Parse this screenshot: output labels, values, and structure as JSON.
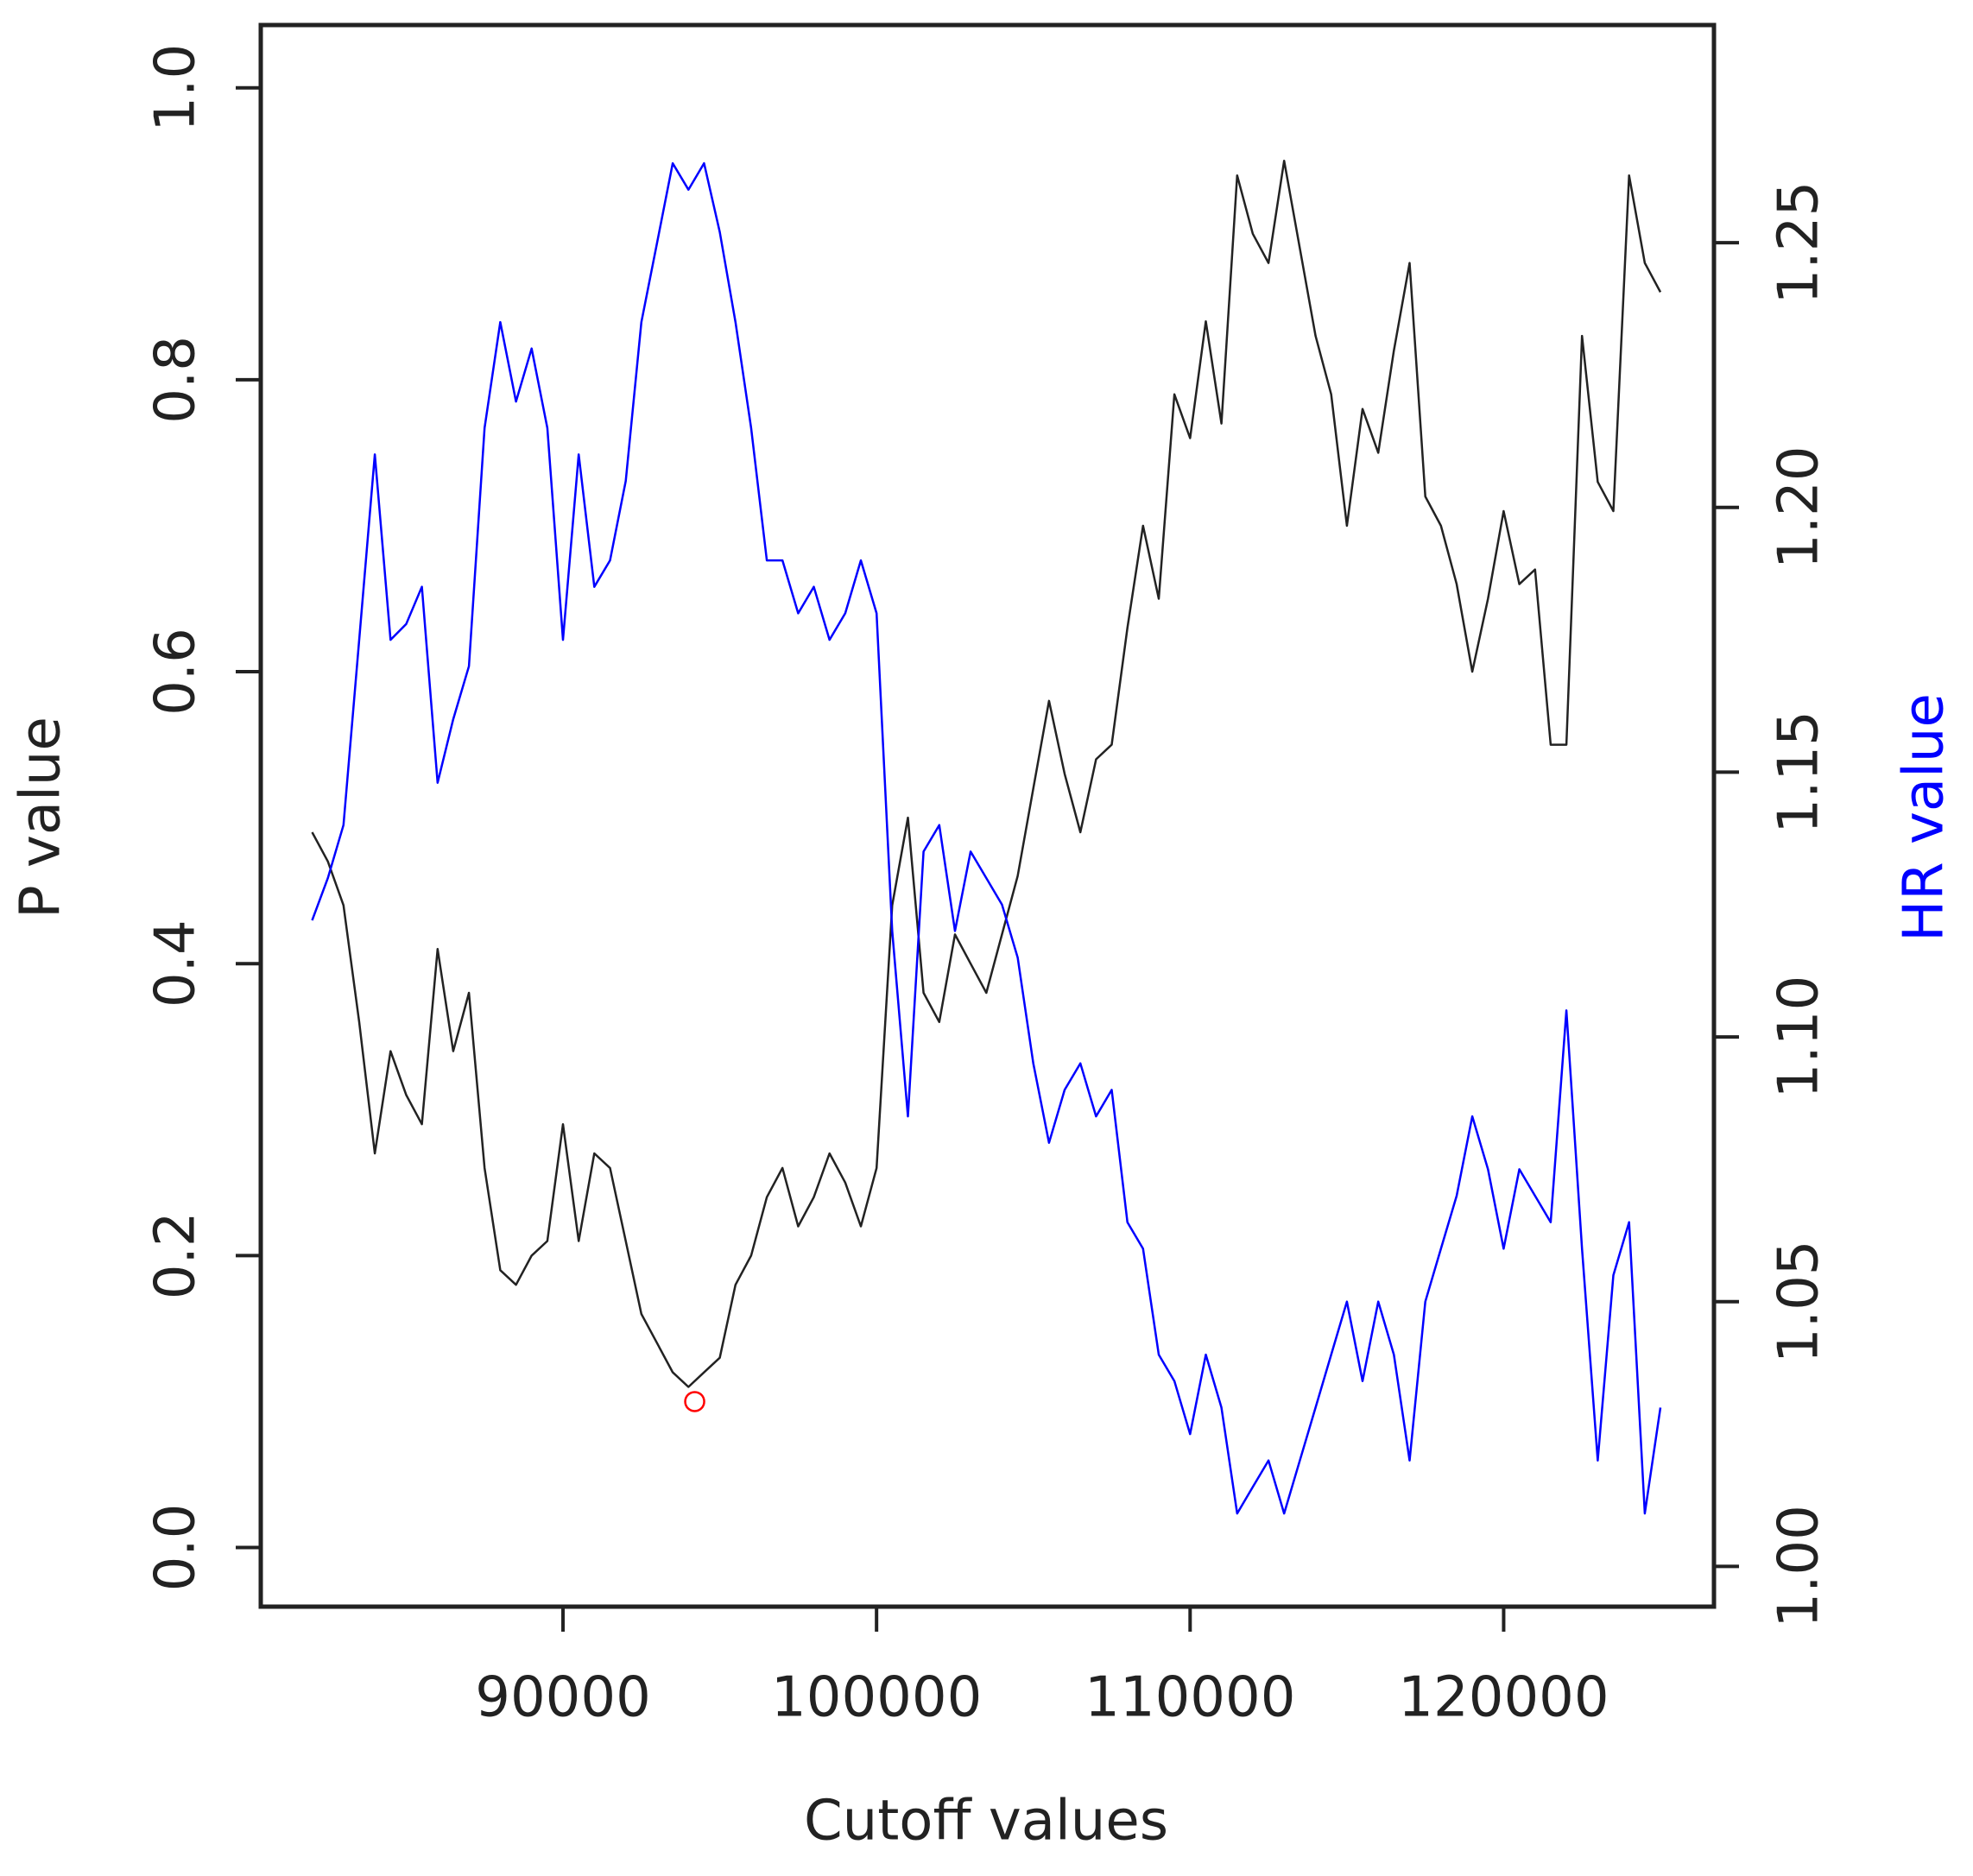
{
  "chart_data": {
    "type": "line",
    "xlabel": "Cutoff values",
    "ylabel": "P value",
    "y2label": "HR value",
    "x": [
      82000,
      82500,
      83000,
      83500,
      84000,
      84500,
      85000,
      85500,
      86000,
      86500,
      87000,
      87500,
      88000,
      88500,
      89000,
      89500,
      90000,
      90500,
      91000,
      91500,
      92000,
      92500,
      93000,
      93500,
      94000,
      94500,
      95000,
      95500,
      96000,
      96500,
      97000,
      97500,
      98000,
      98500,
      99000,
      99500,
      100000,
      100500,
      101000,
      101500,
      102000,
      102500,
      103000,
      103500,
      104000,
      104500,
      105000,
      105500,
      106000,
      106500,
      107000,
      107500,
      108000,
      108500,
      109000,
      109500,
      110000,
      110500,
      111000,
      111500,
      112000,
      112500,
      113000,
      113500,
      114000,
      114500,
      115000,
      115500,
      116000,
      116500,
      117000,
      117500,
      118000,
      118500,
      119000,
      119500,
      120000,
      120500,
      121000,
      121500,
      122000,
      122500,
      123000,
      123500,
      124000,
      124500,
      125000
    ],
    "series": [
      {
        "name": "P value",
        "color": "#222222",
        "values": [
          0.49,
          0.47,
          0.44,
          0.36,
          0.27,
          0.34,
          0.31,
          0.29,
          0.41,
          0.34,
          0.38,
          0.26,
          0.19,
          0.18,
          0.2,
          0.21,
          0.29,
          0.21,
          0.27,
          0.26,
          0.21,
          0.16,
          0.14,
          0.12,
          0.11,
          0.12,
          0.13,
          0.18,
          0.2,
          0.24,
          0.26,
          0.22,
          0.24,
          0.27,
          0.25,
          0.22,
          0.26,
          0.44,
          0.5,
          0.38,
          0.36,
          0.42,
          0.4,
          0.38,
          0.42,
          0.46,
          0.52,
          0.58,
          0.53,
          0.49,
          0.54,
          0.55,
          0.63,
          0.7,
          0.65,
          0.79,
          0.76,
          0.84,
          0.77,
          0.94,
          0.9,
          0.88,
          0.95,
          0.89,
          0.83,
          0.79,
          0.7,
          0.78,
          0.75,
          0.82,
          0.88,
          0.72,
          0.7,
          0.66,
          0.6,
          0.65,
          0.71,
          0.66,
          0.67,
          0.55,
          0.55,
          0.83,
          0.73,
          0.71,
          0.94,
          0.88,
          0.86
        ]
      },
      {
        "name": "HR value",
        "color": "#0000ff",
        "axis": "y2",
        "values": [
          1.122,
          1.13,
          1.14,
          1.175,
          1.21,
          1.175,
          1.178,
          1.185,
          1.148,
          1.16,
          1.17,
          1.215,
          1.235,
          1.22,
          1.23,
          1.215,
          1.175,
          1.21,
          1.185,
          1.19,
          1.205,
          1.235,
          1.25,
          1.265,
          1.26,
          1.265,
          1.252,
          1.235,
          1.215,
          1.19,
          1.19,
          1.18,
          1.185,
          1.175,
          1.18,
          1.19,
          1.18,
          1.12,
          1.085,
          1.135,
          1.14,
          1.12,
          1.135,
          1.13,
          1.125,
          1.115,
          1.095,
          1.08,
          1.09,
          1.095,
          1.085,
          1.09,
          1.065,
          1.06,
          1.04,
          1.035,
          1.025,
          1.04,
          1.03,
          1.01,
          1.015,
          1.02,
          1.01,
          1.02,
          1.03,
          1.04,
          1.05,
          1.035,
          1.05,
          1.04,
          1.02,
          1.05,
          1.06,
          1.07,
          1.085,
          1.075,
          1.06,
          1.075,
          1.07,
          1.065,
          1.105,
          1.06,
          1.02,
          1.055,
          1.065,
          1.01,
          1.03
        ]
      }
    ],
    "marker": {
      "x": 94200,
      "y": 0.1,
      "color": "#ff0000"
    },
    "xlim": [
      80361,
      126707
    ],
    "ylim": [
      -0.0405,
      1.043
    ],
    "y2lim": [
      0.9924,
      1.2911
    ],
    "xticks": [
      90000,
      100000,
      110000,
      120000
    ],
    "yticks": [
      {
        "value": 0,
        "label": "0.0"
      },
      0.2,
      0.4,
      0.6,
      0.8,
      {
        "value": 1,
        "label": "1.0"
      }
    ],
    "y2ticks": [
      {
        "value": 1,
        "label": "1.00"
      },
      1.05,
      {
        "value": 1.1,
        "label": "1.10"
      },
      1.15,
      {
        "value": 1.2,
        "label": "1.20"
      },
      1.25
    ],
    "grid": false
  }
}
